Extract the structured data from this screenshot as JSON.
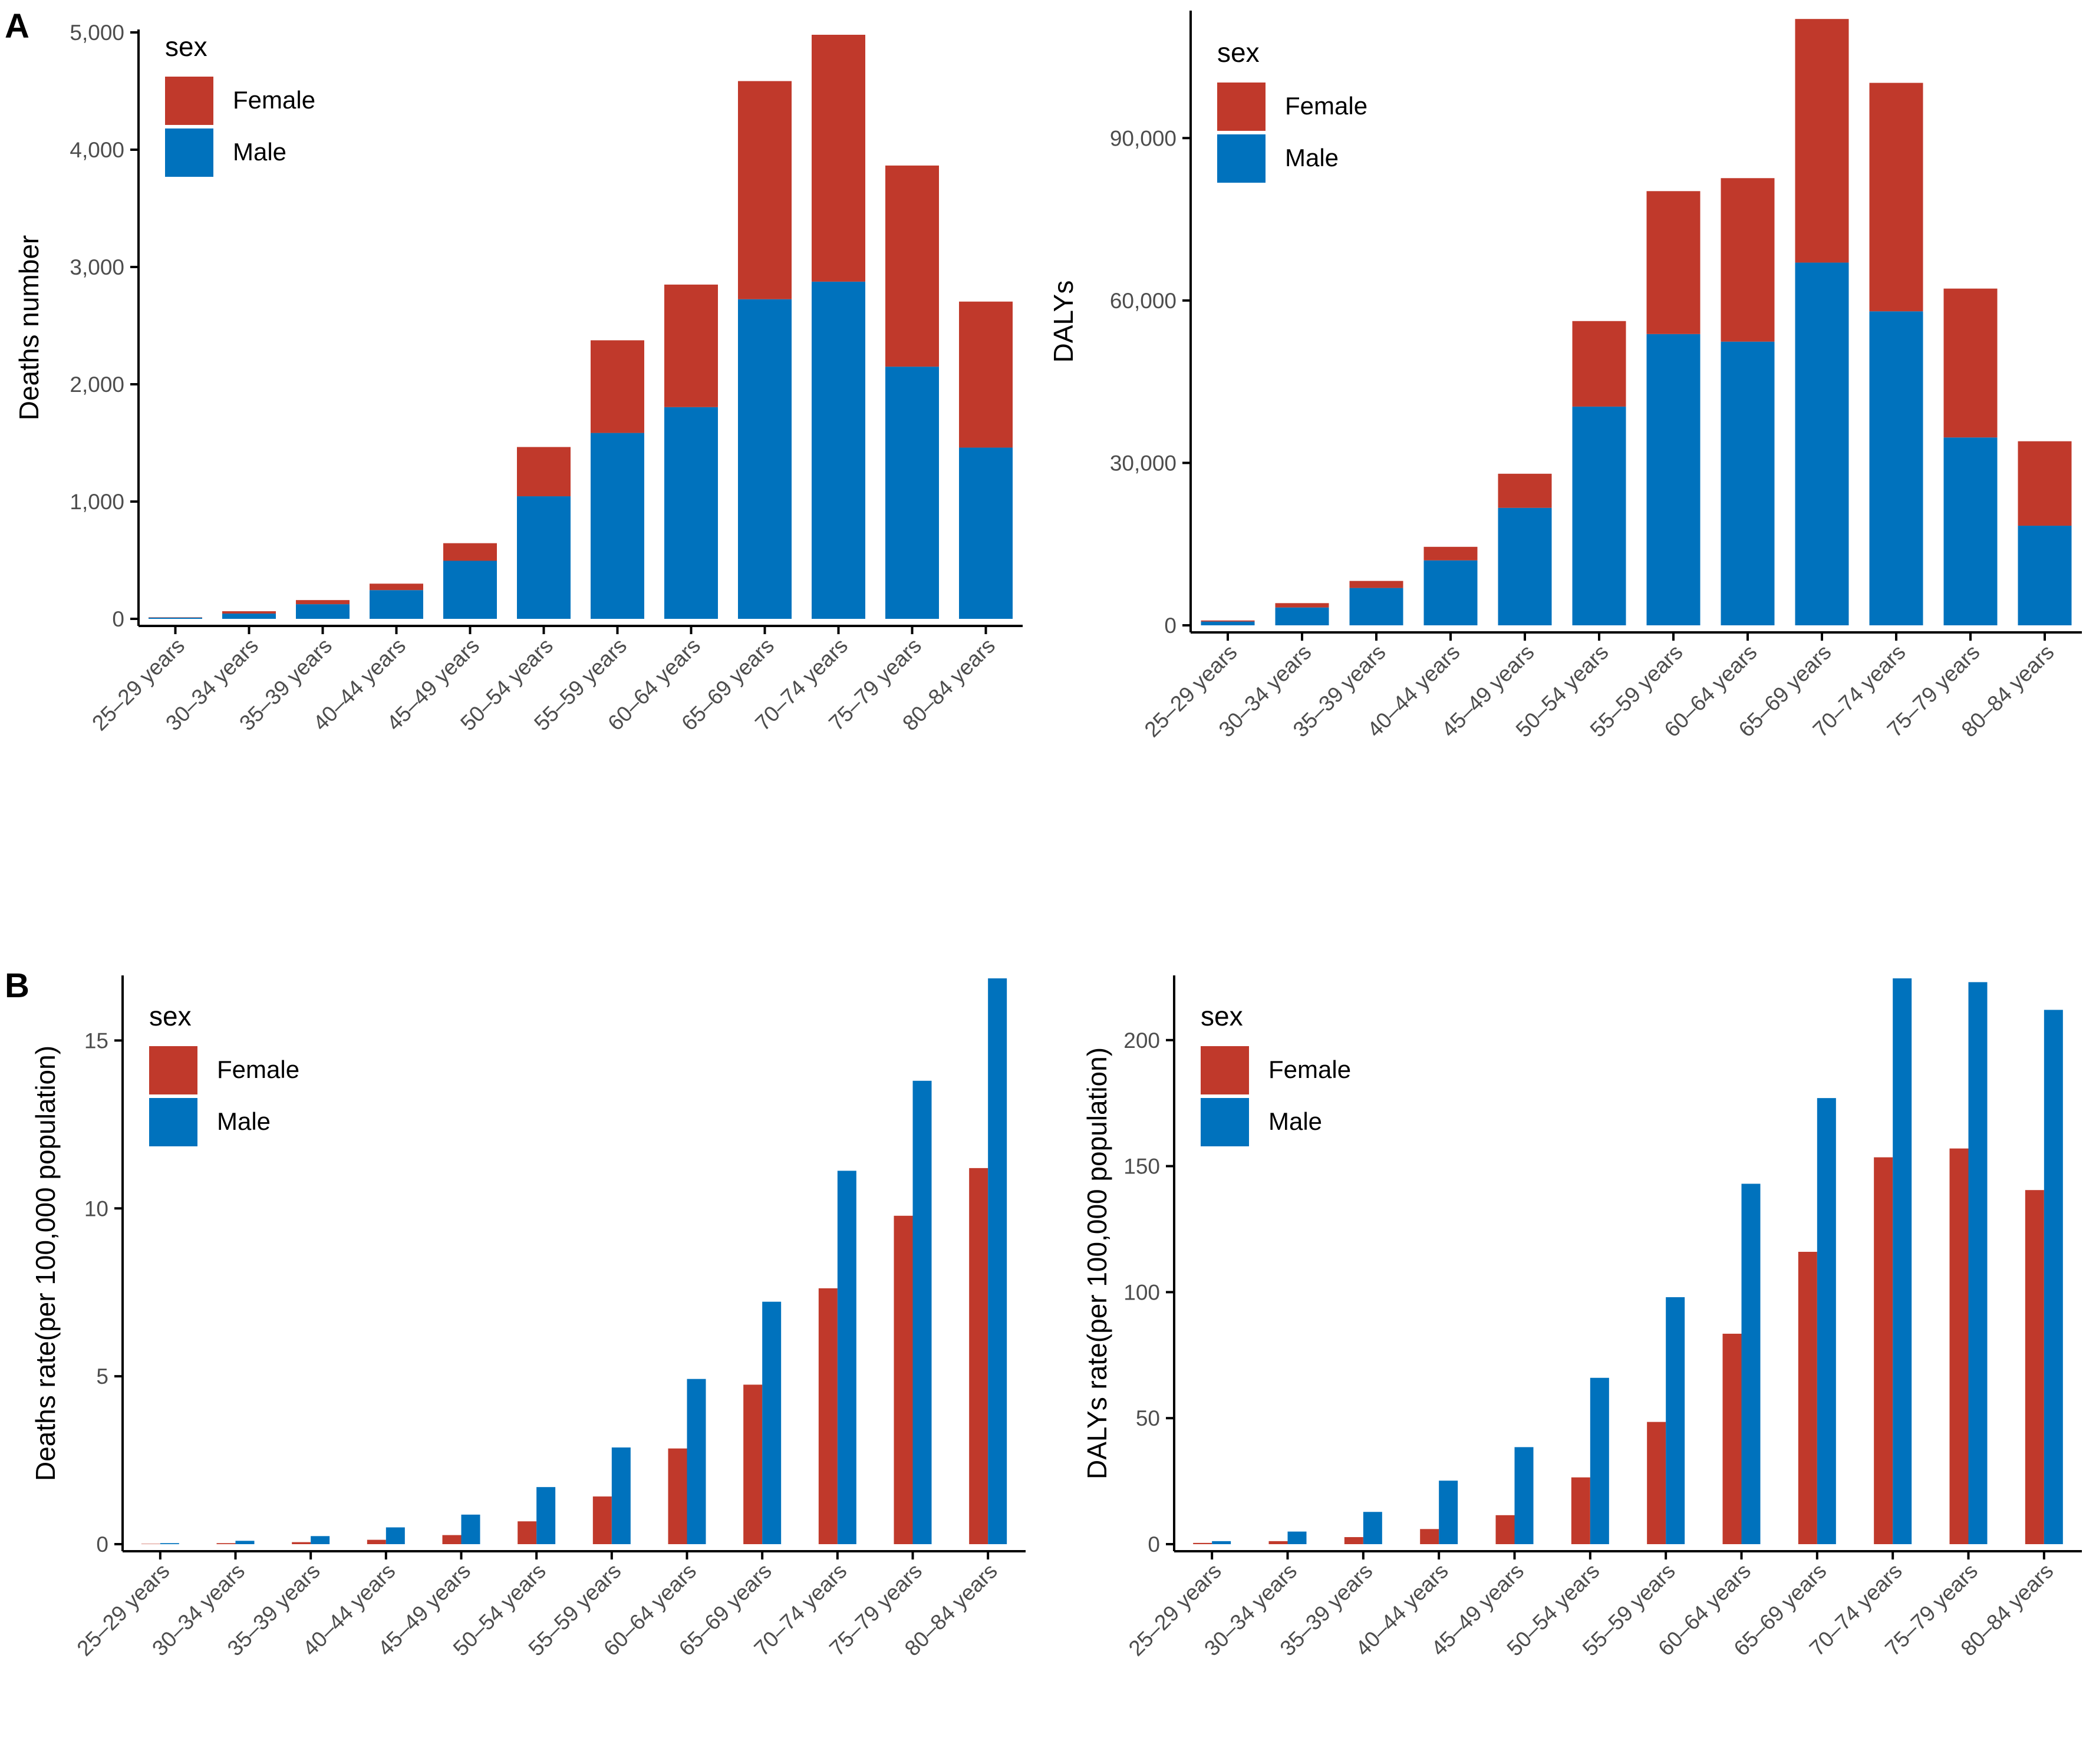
{
  "panel_labels": [
    "A",
    "B"
  ],
  "colors": {
    "female": "#C0392B",
    "male": "#0072BD",
    "axis": "#000000",
    "tick_text": "#4D4D4D",
    "title_text": "#000000"
  },
  "chart_data": [
    {
      "type": "bar",
      "stacked": true,
      "panel": "A",
      "title": "",
      "xlabel": "",
      "ylabel": "Deaths number",
      "legend_title": "sex",
      "legend_position": "top-left",
      "categories": [
        "25–29 years",
        "30–34 years",
        "35–39 years",
        "40–44 years",
        "45–49 years",
        "50–54 years",
        "55–59 years",
        "60–64 years",
        "65–69 years",
        "70–74 years",
        "75–79 years",
        "80–84 years"
      ],
      "series": [
        {
          "name": "Male",
          "values": [
            10,
            45,
            125,
            245,
            495,
            1045,
            1585,
            1805,
            2725,
            2875,
            2150,
            1460
          ]
        },
        {
          "name": "Female",
          "values": [
            3,
            20,
            35,
            55,
            150,
            420,
            790,
            1045,
            1860,
            2105,
            1715,
            1245
          ]
        }
      ],
      "ylim": [
        0,
        5000
      ],
      "yticks": [
        0,
        1000,
        2000,
        3000,
        4000,
        5000
      ],
      "ytick_labels": [
        "0",
        "1,000",
        "2,000",
        "3,000",
        "4,000",
        "5,000"
      ]
    },
    {
      "type": "bar",
      "stacked": true,
      "panel": "A",
      "title": "",
      "xlabel": "",
      "ylabel": "DALYs",
      "legend_title": "sex",
      "legend_position": "top-left",
      "categories": [
        "25–29 years",
        "30–34 years",
        "35–39 years",
        "40–44 years",
        "45–49 years",
        "50–54 years",
        "55–59 years",
        "60–64 years",
        "65–69 years",
        "70–74 years",
        "75–79 years",
        "80–84 years"
      ],
      "series": [
        {
          "name": "Male",
          "values": [
            700,
            3300,
            6900,
            12000,
            21700,
            40400,
            53800,
            52400,
            67000,
            58000,
            34700,
            18400
          ]
        },
        {
          "name": "Female",
          "values": [
            200,
            800,
            1300,
            2500,
            6300,
            15800,
            26400,
            30200,
            45000,
            42200,
            27500,
            15600
          ]
        }
      ],
      "ylim": [
        0,
        113000
      ],
      "yticks": [
        0,
        30000,
        60000,
        90000
      ],
      "ytick_labels": [
        "0",
        "30,000",
        "60,000",
        "90,000"
      ]
    },
    {
      "type": "bar",
      "stacked": false,
      "panel": "B",
      "title": "",
      "xlabel": "",
      "ylabel": "Deaths rate(per 100,000 population)",
      "legend_title": "sex",
      "legend_position": "top-left",
      "categories": [
        "25–29 years",
        "30–34 years",
        "35–39 years",
        "40–44 years",
        "45–49 years",
        "50–54 years",
        "55–59 years",
        "60–64 years",
        "65–69 years",
        "70–74 years",
        "75–79 years",
        "80–84 years"
      ],
      "series": [
        {
          "name": "Female",
          "values": [
            0.01,
            0.03,
            0.06,
            0.13,
            0.27,
            0.68,
            1.42,
            2.85,
            4.75,
            7.62,
            9.78,
            11.2
          ]
        },
        {
          "name": "Male",
          "values": [
            0.03,
            0.1,
            0.24,
            0.5,
            0.88,
            1.7,
            2.88,
            4.92,
            7.22,
            11.12,
            13.8,
            16.85
          ]
        }
      ],
      "ylim": [
        0,
        16.85
      ],
      "yticks": [
        0,
        5,
        10,
        15
      ],
      "ytick_labels": [
        "0",
        "5",
        "10",
        "15"
      ]
    },
    {
      "type": "bar",
      "stacked": false,
      "panel": "B",
      "title": "",
      "xlabel": "",
      "ylabel": "DALYs rate(per 100,000 population)",
      "legend_title": "sex",
      "legend_position": "top-left",
      "categories": [
        "25–29 years",
        "30–34 years",
        "35–39 years",
        "40–44 years",
        "45–49 years",
        "50–54 years",
        "55–59 years",
        "60–64 years",
        "65–69 years",
        "70–74 years",
        "75–79 years",
        "80–84 years"
      ],
      "series": [
        {
          "name": "Female",
          "values": [
            0.5,
            1.2,
            2.8,
            6,
            11.5,
            26.5,
            48.5,
            83.5,
            116,
            153.5,
            157,
            140.5
          ]
        },
        {
          "name": "Male",
          "values": [
            1.2,
            5,
            12.8,
            25.2,
            38.5,
            66,
            98,
            143,
            177,
            224.5,
            223,
            212
          ]
        }
      ],
      "ylim": [
        0,
        224.5
      ],
      "yticks": [
        0,
        50,
        100,
        150,
        200
      ],
      "ytick_labels": [
        "0",
        "50",
        "100",
        "150",
        "200"
      ]
    }
  ]
}
